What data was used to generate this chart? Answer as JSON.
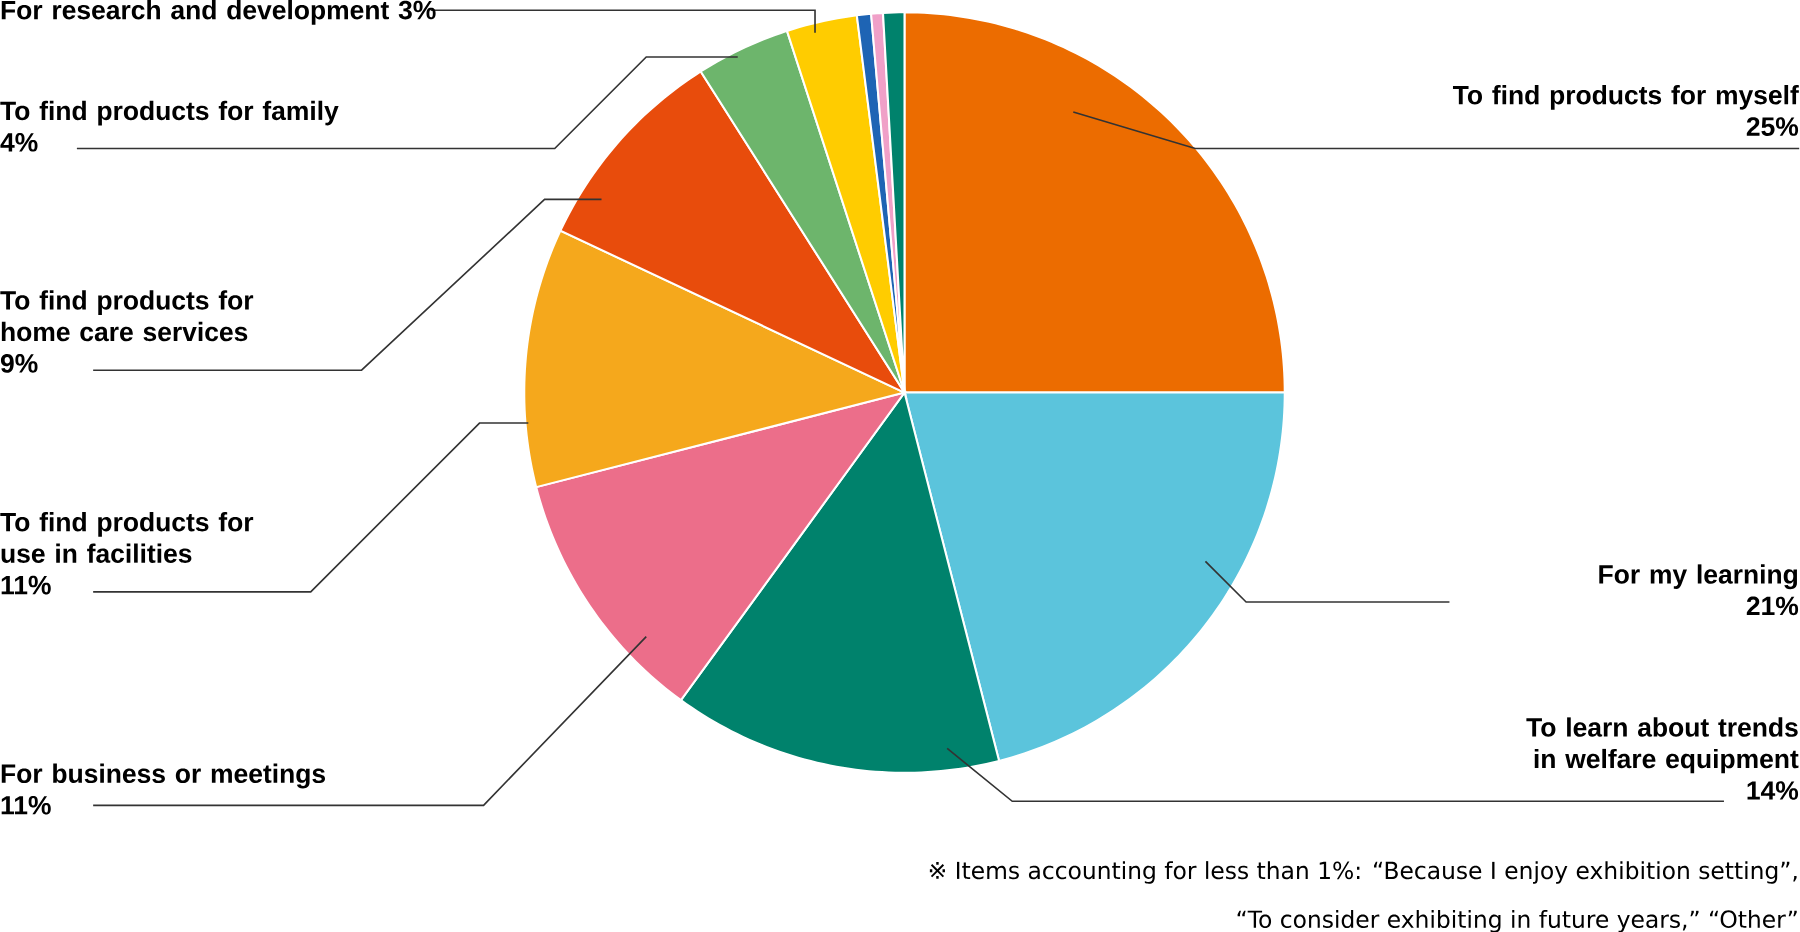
{
  "chart_data": {
    "type": "pie",
    "categories": [
      "To find products for myself",
      "For my learning",
      "To learn about trends in welfare equipment",
      "For business or meetings",
      "To find products for use in facilities",
      "To find products for home care services",
      "To find products for family",
      "For research and development",
      null,
      null,
      null
    ],
    "values": [
      25,
      21,
      14,
      11,
      11,
      9,
      4,
      3,
      0.6,
      0.5,
      0.9
    ],
    "value_labels": [
      "25%",
      "21%",
      "14%",
      "11%",
      "11%",
      "9%",
      "4%",
      "3%",
      null,
      null,
      null
    ],
    "colors": [
      "#ec6c00",
      "#5bc4dc",
      "#00826c",
      "#ec6e8a",
      "#f5a81c",
      "#e84c0c",
      "#6db56c",
      "#ffcc00",
      "#1e64b4",
      "#f0a0c8",
      "#00826c"
    ],
    "annotations": [
      "※ Items accounting for less than 1%: “Because I enjoy exhibition setting”,",
      "“To consider exhibiting in future years,” “Other”"
    ]
  }
}
